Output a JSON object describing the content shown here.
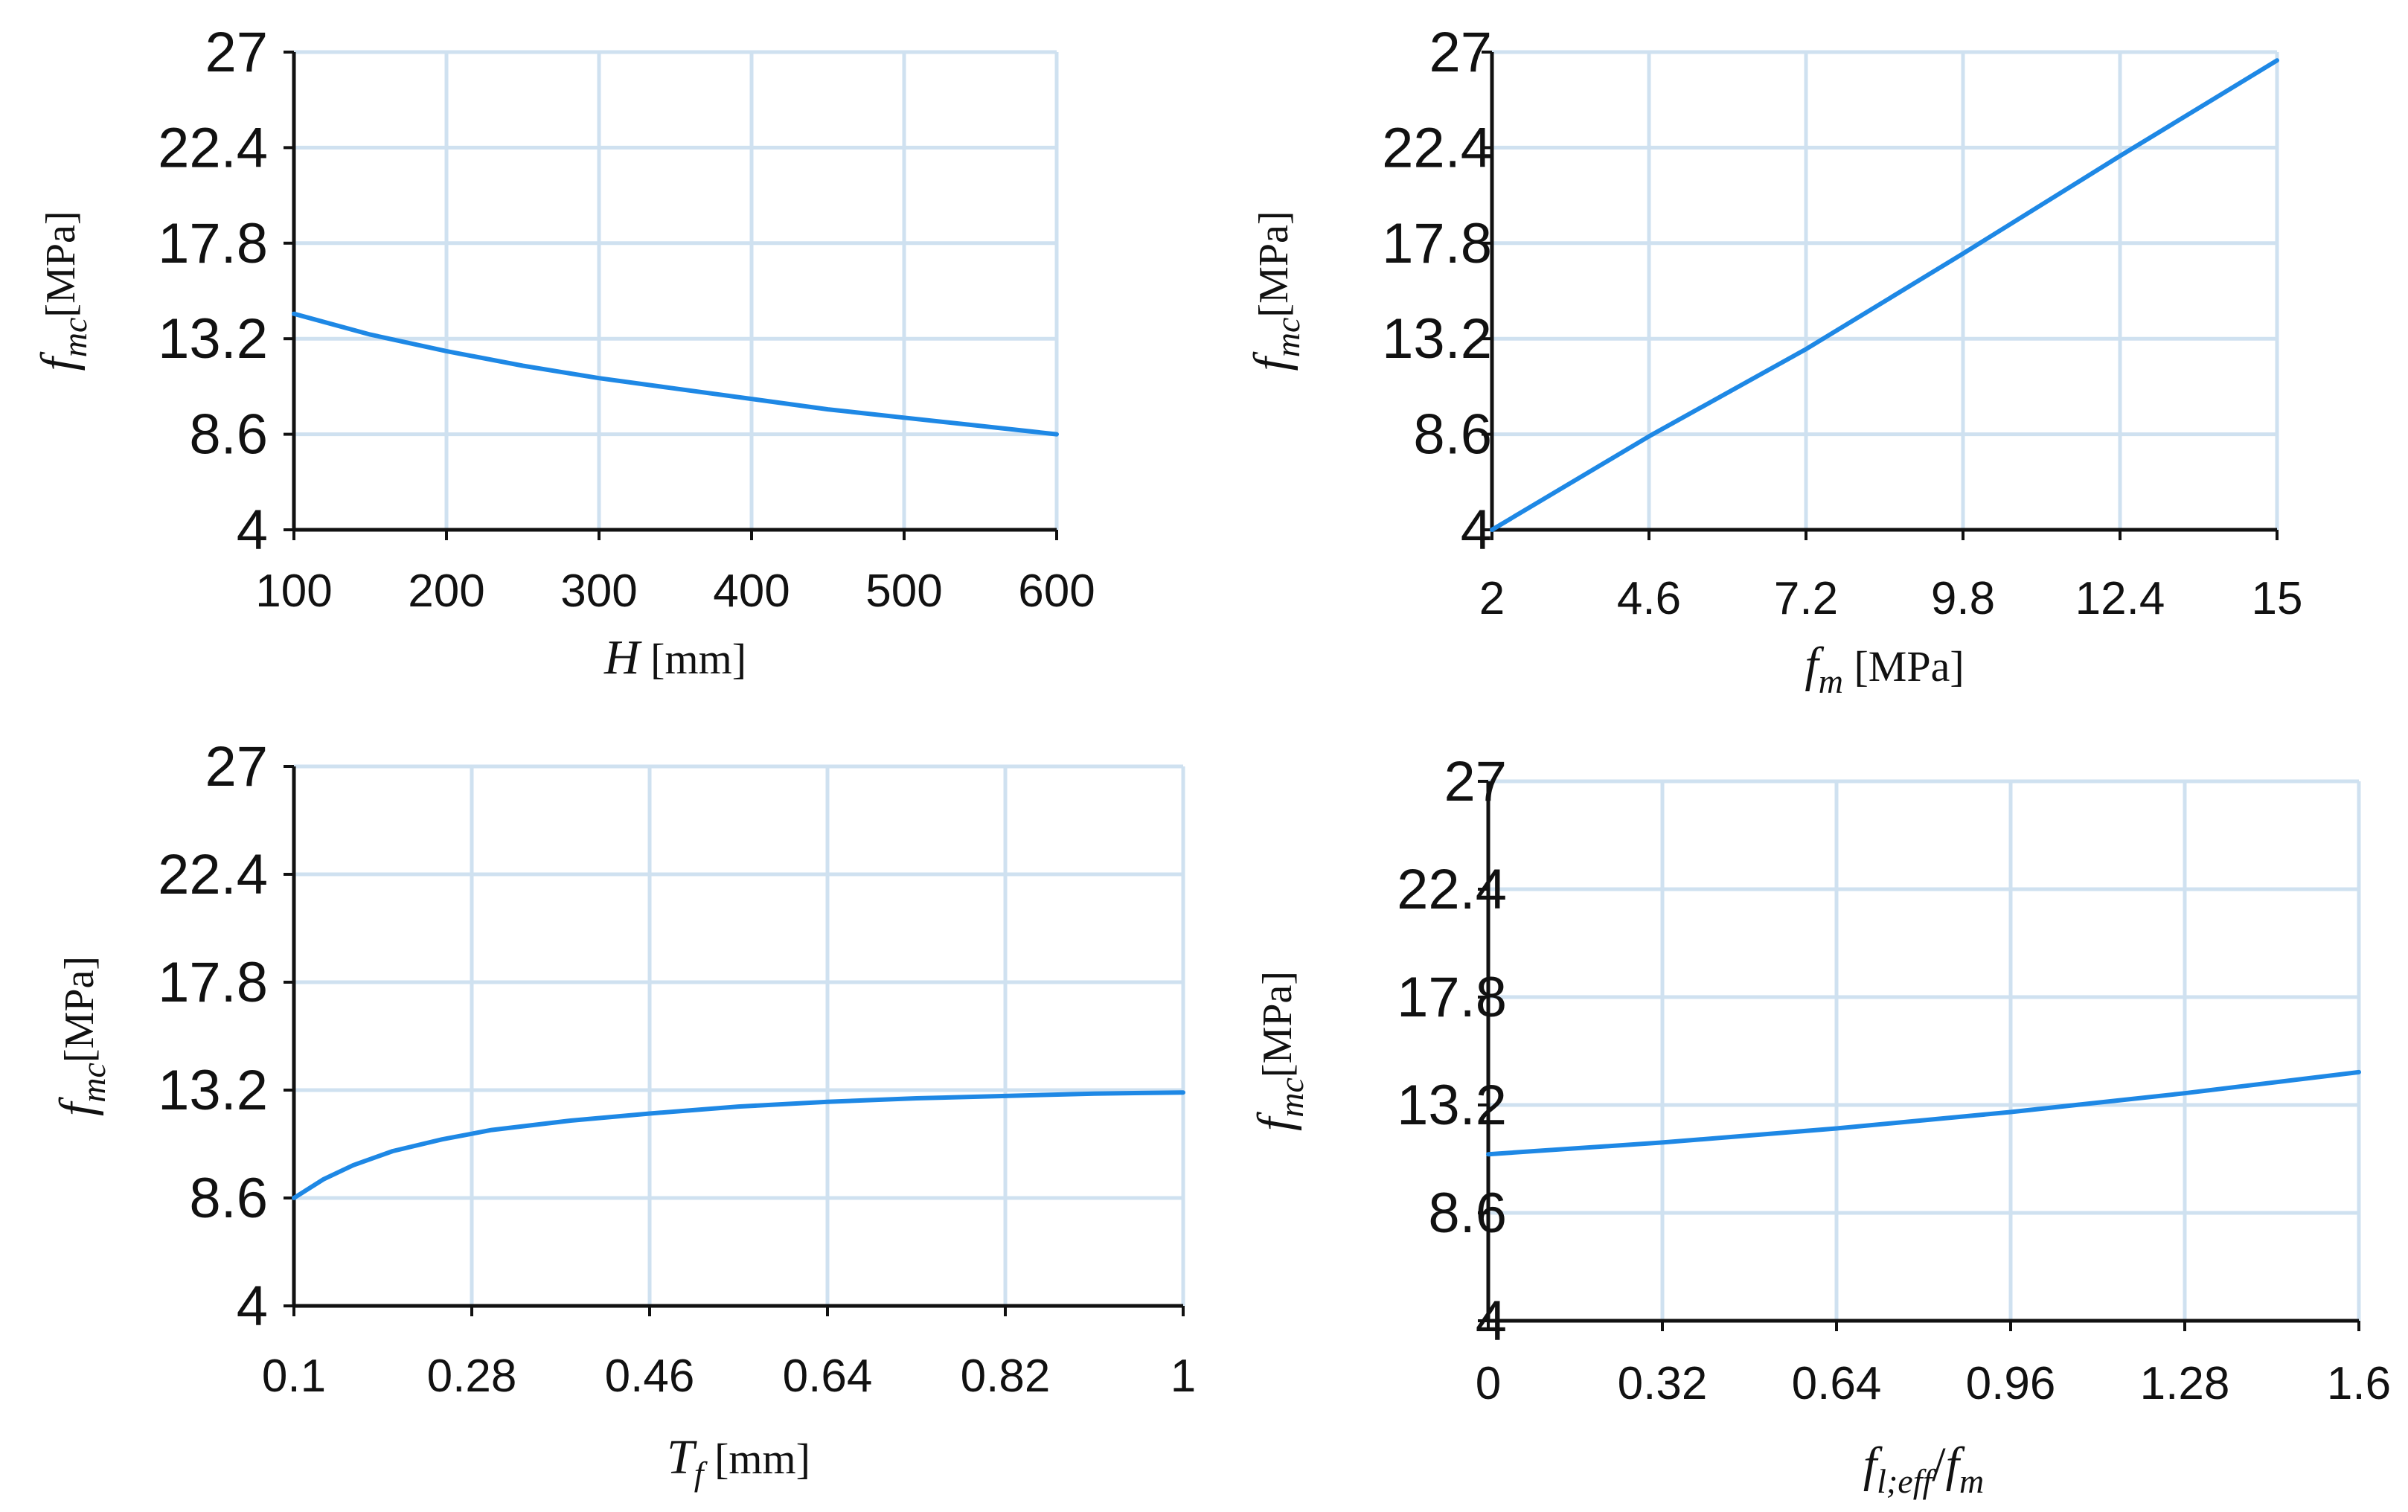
{
  "accent_color": "#1e88e5",
  "chart_data": [
    {
      "type": "line",
      "id": "H",
      "title": "",
      "xlabel": {
        "var": "H",
        "sub": "",
        "unit": "[mm]"
      },
      "ylabel": {
        "var": "f",
        "sub": "mc",
        "unit": "[MPa]"
      },
      "xlim": [
        100,
        600
      ],
      "ylim": [
        4,
        27
      ],
      "x_ticks": [
        100,
        200,
        300,
        400,
        500,
        600
      ],
      "x_tick_labels": [
        "100",
        "200",
        "300",
        "400",
        "500",
        "600"
      ],
      "y_ticks": [
        4,
        8.6,
        13.2,
        17.8,
        22.4,
        27
      ],
      "y_tick_labels": [
        "4",
        "8.6",
        "13.2",
        "17.8",
        "22.4",
        "27"
      ],
      "grid": true,
      "series": [
        {
          "name": "fmc",
          "x": [
            100,
            150,
            200,
            250,
            300,
            350,
            400,
            450,
            500,
            550,
            600
          ],
          "y": [
            14.4,
            13.4,
            12.6,
            11.9,
            11.3,
            10.8,
            10.3,
            9.8,
            9.4,
            9.0,
            8.6
          ]
        }
      ]
    },
    {
      "type": "line",
      "id": "fm",
      "title": "",
      "xlabel": {
        "var": "f",
        "sub": "m",
        "unit": "[MPa]"
      },
      "ylabel": {
        "var": "f",
        "sub": "mc",
        "unit": "[MPa]"
      },
      "xlim": [
        2,
        15
      ],
      "ylim": [
        4,
        27
      ],
      "x_ticks": [
        2,
        4.6,
        7.2,
        9.8,
        12.4,
        15
      ],
      "x_tick_labels": [
        "2",
        "4.6",
        "7.2",
        "9.8",
        "12.4",
        "15"
      ],
      "y_ticks": [
        4,
        8.6,
        13.2,
        17.8,
        22.4,
        27
      ],
      "y_tick_labels": [
        "4",
        "8.6",
        "13.2",
        "17.8",
        "22.4",
        "27"
      ],
      "grid": true,
      "series": [
        {
          "name": "fmc",
          "x": [
            2,
            4.6,
            7.2,
            9.8,
            12.4,
            15
          ],
          "y": [
            4.0,
            8.5,
            12.7,
            17.3,
            22.0,
            26.6
          ]
        }
      ]
    },
    {
      "type": "line",
      "id": "Tf",
      "title": "",
      "xlabel": {
        "var": "T",
        "sub": "f",
        "unit": "[mm]"
      },
      "ylabel": {
        "var": "f",
        "sub": "mc",
        "unit": "[MPa]"
      },
      "xlim": [
        0.1,
        1
      ],
      "ylim": [
        4,
        27
      ],
      "x_ticks": [
        0.1,
        0.28,
        0.46,
        0.64,
        0.82,
        1
      ],
      "x_tick_labels": [
        "0.1",
        "0.28",
        "0.46",
        "0.64",
        "0.82",
        "1"
      ],
      "y_ticks": [
        4,
        8.6,
        13.2,
        17.8,
        22.4,
        27
      ],
      "y_tick_labels": [
        "4",
        "8.6",
        "13.2",
        "17.8",
        "22.4",
        "27"
      ],
      "grid": true,
      "series": [
        {
          "name": "fmc",
          "x": [
            0.1,
            0.13,
            0.16,
            0.2,
            0.25,
            0.3,
            0.38,
            0.46,
            0.55,
            0.64,
            0.73,
            0.82,
            0.91,
            1.0
          ],
          "y": [
            8.6,
            9.4,
            10.0,
            10.6,
            11.1,
            11.5,
            11.9,
            12.2,
            12.5,
            12.7,
            12.85,
            12.95,
            13.05,
            13.1
          ]
        }
      ]
    },
    {
      "type": "line",
      "id": "fleff",
      "title": "",
      "xlabel": {
        "var": "f",
        "sub": "l;eff",
        "tail_var": "f",
        "tail_sub": "m",
        "unit": ""
      },
      "ylabel": {
        "var": "f",
        "sub": "mc",
        "unit": "[MPa]"
      },
      "xlim": [
        0,
        1.6
      ],
      "ylim": [
        4,
        27
      ],
      "x_ticks": [
        0,
        0.32,
        0.64,
        0.96,
        1.28,
        1.6
      ],
      "x_tick_labels": [
        "0",
        "0.32",
        "0.64",
        "0.96",
        "1.28",
        "1.6"
      ],
      "y_ticks": [
        4,
        8.6,
        13.2,
        17.8,
        22.4,
        27
      ],
      "y_tick_labels": [
        "4",
        "8.6",
        "13.2",
        "17.8",
        "22.4",
        "27"
      ],
      "grid": true,
      "series": [
        {
          "name": "fmc",
          "x": [
            0,
            0.32,
            0.64,
            0.96,
            1.28,
            1.6
          ],
          "y": [
            11.1,
            11.6,
            12.2,
            12.9,
            13.7,
            14.6
          ]
        }
      ]
    }
  ]
}
